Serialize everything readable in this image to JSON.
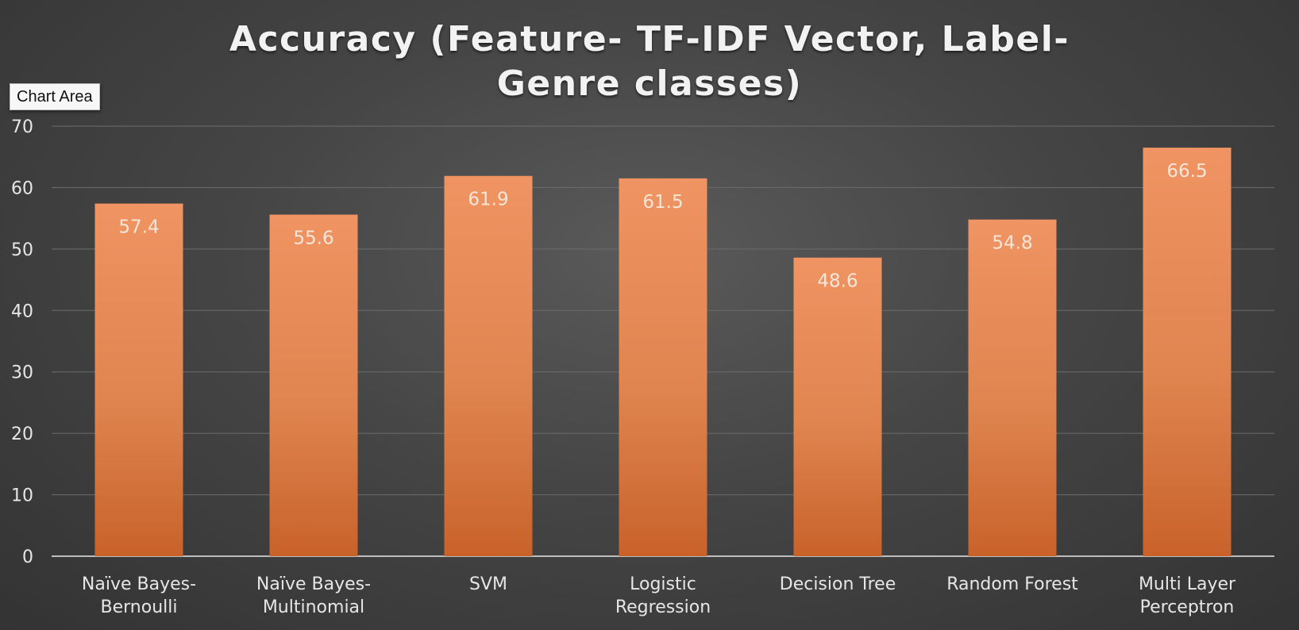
{
  "chart_data": {
    "type": "bar",
    "title": "Accuracy (Feature- TF-IDF Vector, Label- Genre classes)",
    "categories": [
      "Naïve Bayes- Bernoulli",
      "Naïve Bayes- Multinomial",
      "SVM",
      "Logistic Regression",
      "Decision Tree",
      "Random Forest",
      "Multi Layer Perceptron"
    ],
    "values": [
      57.4,
      55.6,
      61.9,
      61.5,
      48.6,
      54.8,
      66.5
    ],
    "ylim": [
      0,
      70
    ],
    "yticks": [
      0,
      10,
      20,
      30,
      40,
      50,
      60,
      70
    ],
    "grid": true,
    "data_labels": true,
    "bar_color": "#e8875a",
    "xlabel": "",
    "ylabel": ""
  },
  "tooltip": {
    "label": "Chart Area"
  }
}
